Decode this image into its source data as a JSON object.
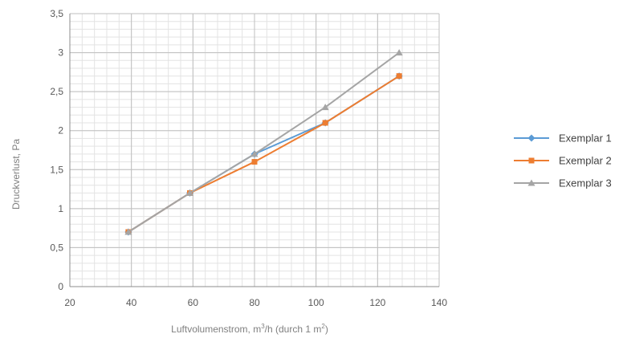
{
  "chart_data": {
    "type": "line",
    "title": "",
    "xlabel_parts": [
      "Luftvolumenstrom, m",
      "3",
      "/h (durch 1 m",
      "2",
      ")"
    ],
    "ylabel": "Druckverlust, Pa",
    "xlim": [
      20,
      140
    ],
    "ylim": [
      0,
      3.5
    ],
    "x_ticks": [
      20,
      40,
      60,
      80,
      100,
      120,
      140
    ],
    "y_ticks": [
      0,
      0.5,
      1,
      1.5,
      2,
      2.5,
      3,
      3.5
    ],
    "x_tick_labels": [
      "20",
      "40",
      "60",
      "80",
      "100",
      "120",
      "140"
    ],
    "y_tick_labels": [
      "0",
      "0,5",
      "1",
      "1,5",
      "2",
      "2,5",
      "3",
      "3,5"
    ],
    "grid": {
      "major": true,
      "minor": true
    },
    "legend_position": "right",
    "series": [
      {
        "name": "Exemplar 1",
        "color": "#5b9bd5",
        "marker": "diamond",
        "x": [
          39,
          59,
          80,
          103,
          127
        ],
        "y": [
          0.7,
          1.2,
          1.7,
          2.1,
          2.7
        ]
      },
      {
        "name": "Exemplar 2",
        "color": "#ed7d31",
        "marker": "square",
        "x": [
          39,
          59,
          80,
          103,
          127
        ],
        "y": [
          0.7,
          1.2,
          1.6,
          2.1,
          2.7
        ]
      },
      {
        "name": "Exemplar 3",
        "color": "#a5a5a5",
        "marker": "triangle",
        "x": [
          39,
          59,
          80,
          103,
          127
        ],
        "y": [
          0.7,
          1.2,
          1.7,
          2.3,
          3.0
        ]
      }
    ]
  }
}
